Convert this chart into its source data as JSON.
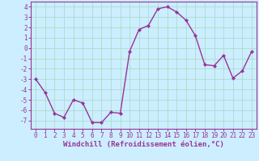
{
  "x": [
    0,
    1,
    2,
    3,
    4,
    5,
    6,
    7,
    8,
    9,
    10,
    11,
    12,
    13,
    14,
    15,
    16,
    17,
    18,
    19,
    20,
    21,
    22,
    23
  ],
  "y": [
    -3.0,
    -4.3,
    -6.3,
    -6.7,
    -5.0,
    -5.3,
    -7.2,
    -7.2,
    -6.2,
    -6.3,
    -0.3,
    1.8,
    2.2,
    3.8,
    4.0,
    3.5,
    2.7,
    1.2,
    -1.6,
    -1.7,
    -0.7,
    -2.9,
    -2.2,
    -0.3
  ],
  "line_color": "#993399",
  "marker": "D",
  "marker_size": 2.0,
  "line_width": 1.0,
  "bg_color": "#cceeff",
  "grid_color": "#aaddcc",
  "spine_color": "#993399",
  "tick_color": "#993399",
  "label_color": "#993399",
  "xlabel": "Windchill (Refroidissement éolien,°C)",
  "xlabel_fontsize": 6.5,
  "xtick_fontsize": 5.5,
  "ytick_fontsize": 5.5,
  "ylim": [
    -7.8,
    4.5
  ],
  "xlim": [
    -0.5,
    23.5
  ],
  "yticks": [
    -7,
    -6,
    -5,
    -4,
    -3,
    -2,
    -1,
    0,
    1,
    2,
    3,
    4
  ],
  "xticks": [
    0,
    1,
    2,
    3,
    4,
    5,
    6,
    7,
    8,
    9,
    10,
    11,
    12,
    13,
    14,
    15,
    16,
    17,
    18,
    19,
    20,
    21,
    22,
    23
  ]
}
